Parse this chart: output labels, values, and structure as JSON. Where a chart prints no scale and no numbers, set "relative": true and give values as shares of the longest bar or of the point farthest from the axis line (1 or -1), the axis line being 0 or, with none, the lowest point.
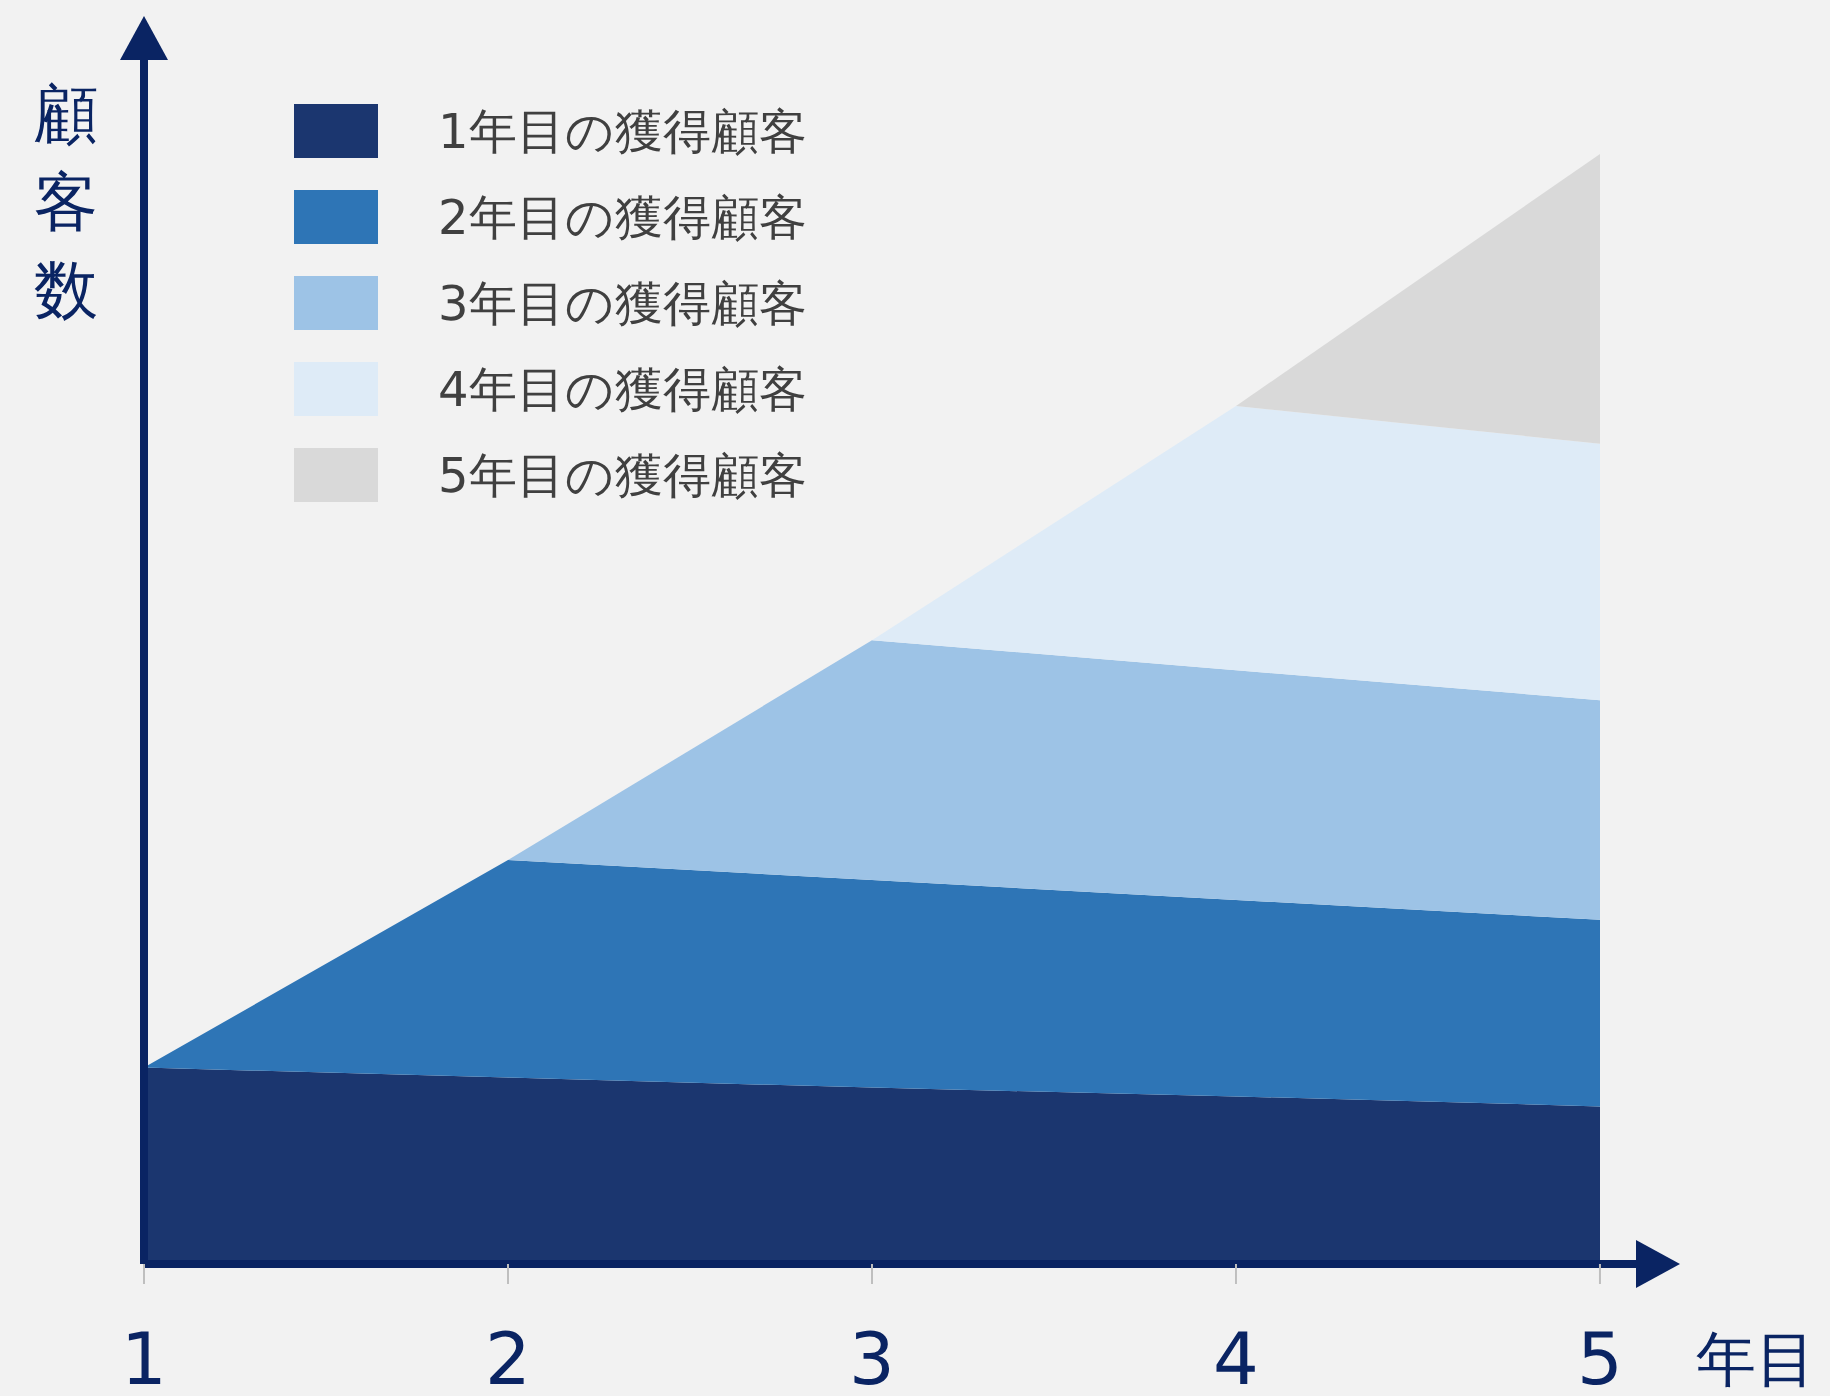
{
  "chart_data": {
    "type": "area",
    "stacked": true,
    "relative": true,
    "xlabel": "年目",
    "ylabel": "顧客数",
    "x": [
      1,
      2,
      3,
      4,
      5
    ],
    "xlim": [
      1,
      5.11
    ],
    "xticks": [
      1,
      2,
      3,
      4,
      5
    ],
    "tick_labels": "x",
    "legend": "top left",
    "series": [
      {
        "name": "1年目の獲得顧客",
        "color": "#1b366f",
        "values": [
          0.177,
          0.168,
          0.159,
          0.151,
          0.142
        ]
      },
      {
        "name": "2年目の獲得顧客",
        "color": "#2e75b6",
        "values": [
          0,
          0.196,
          0.187,
          0.177,
          0.168
        ]
      },
      {
        "name": "3年目の獲得顧客",
        "color": "#9dc3e6",
        "values": [
          null,
          0,
          0.216,
          0.207,
          0.198
        ]
      },
      {
        "name": "4年目の獲得顧客",
        "color": "#deebf7",
        "values": [
          null,
          null,
          0,
          0.238,
          0.231
        ]
      },
      {
        "name": "5年目の獲得顧客",
        "color": "#d9d9d9",
        "values": [
          null,
          null,
          null,
          0,
          0.261
        ]
      }
    ]
  }
}
